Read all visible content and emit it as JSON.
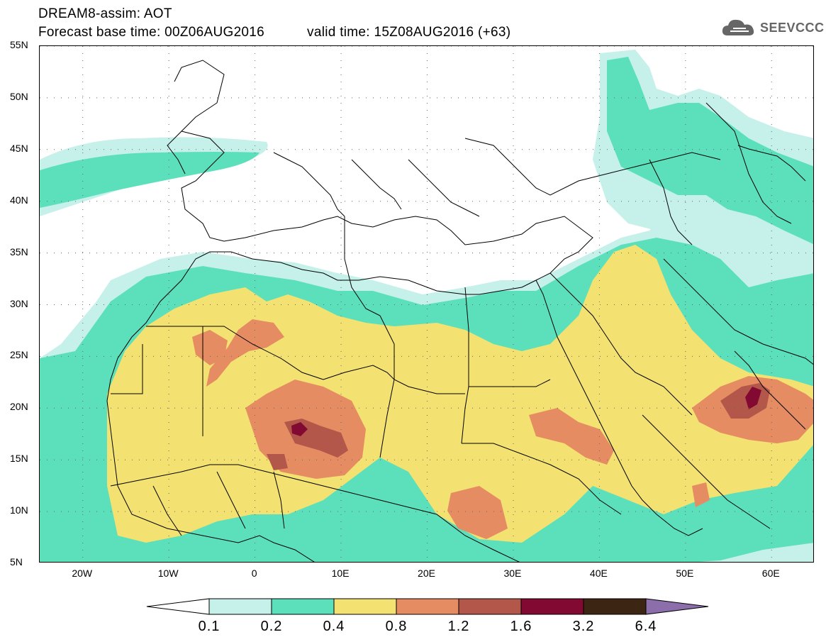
{
  "header": {
    "title": "DREAM8-assim: AOT",
    "base_time": "Forecast base time: 00Z06AUG2016",
    "valid_time": "valid time: 15Z08AUG2016 (+63)",
    "logo_text": "SEEVCCC"
  },
  "map": {
    "projection": "lat-lon",
    "lon_range": [
      -25,
      65
    ],
    "lat_range": [
      5,
      55
    ],
    "lat_ticks": [
      "55N",
      "50N",
      "45N",
      "40N",
      "35N",
      "30N",
      "25N",
      "20N",
      "15N",
      "10N",
      "5N"
    ],
    "lon_ticks": [
      "20W",
      "10W",
      "0",
      "10E",
      "20E",
      "30E",
      "40E",
      "50E",
      "60E"
    ],
    "gridlines": "dotted",
    "colors": {
      "c1": "#c6f0ea",
      "c2": "#5ce0bb",
      "c3": "#f3e171",
      "c4": "#e68c63",
      "c5": "#b3574a",
      "c6": "#820a32",
      "c7": "#3c2512",
      "c8": "#8c6eaa"
    }
  },
  "colorbar": {
    "levels": [
      "0.1",
      "0.2",
      "0.4",
      "0.8",
      "1.2",
      "1.6",
      "3.2",
      "6.4"
    ],
    "colors": [
      "#c6f0ea",
      "#5ce0bb",
      "#f3e171",
      "#e68c63",
      "#b3574a",
      "#820a32",
      "#3c2512",
      "#8c6eaa"
    ]
  }
}
